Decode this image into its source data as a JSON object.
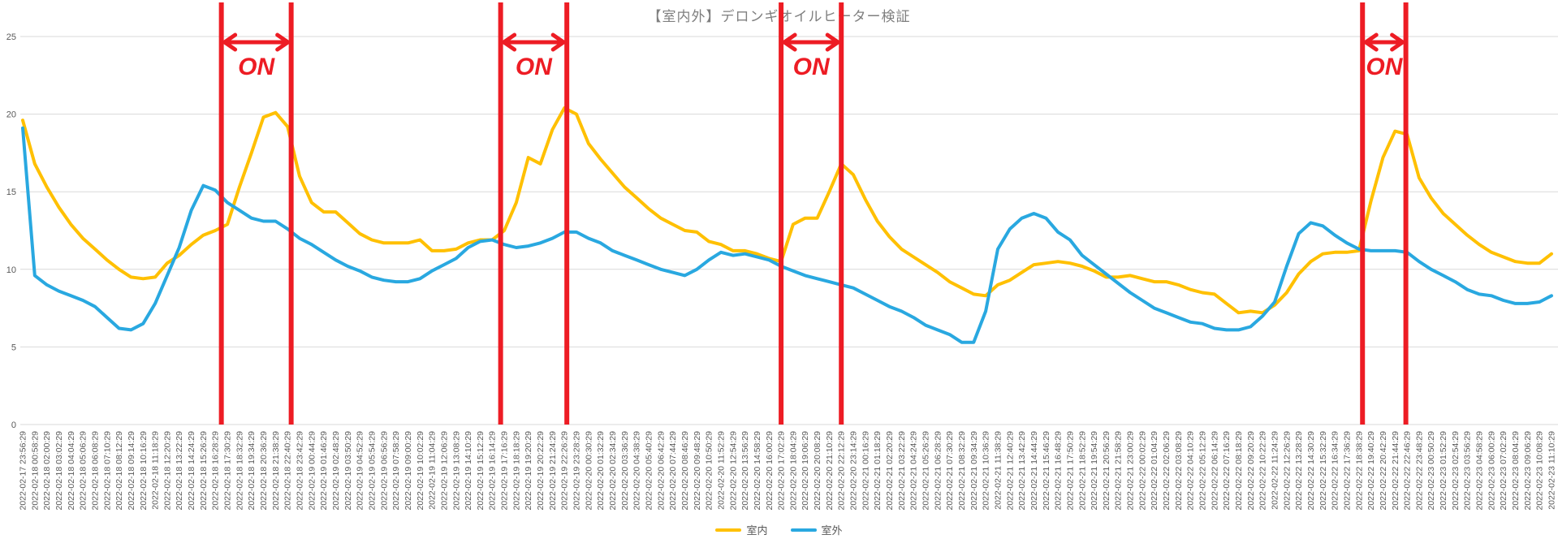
{
  "title": "【室内外】デロンギオイルヒーター検証",
  "legend": [
    {
      "label": "室内",
      "color": "#FFC000"
    },
    {
      "label": "室外",
      "color": "#29A8E0"
    }
  ],
  "colors": {
    "indoor": "#FFC000",
    "outdoor": "#29A8E0",
    "annotation_red": "#ED1C24",
    "gridline": "#D9D9D9",
    "tick_text": "#595959",
    "title_text": "#7F7F7F"
  },
  "chart_data": {
    "type": "line",
    "title": "【室内外】デロンギオイルヒーター検証",
    "xlabel": "",
    "ylabel": "",
    "ylim": [
      0,
      25
    ],
    "y_ticks": [
      0,
      5,
      10,
      15,
      20,
      25
    ],
    "grid": "horizontal",
    "legend_position": "bottom-center",
    "x_labels": [
      "2022-02-17 23:56:29",
      "2022-02-18 00:58:29",
      "2022-02-18 02:00:29",
      "2022-02-18 03:02:29",
      "2022-02-18 04:04:29",
      "2022-02-18 05:06:29",
      "2022-02-18 06:08:29",
      "2022-02-18 07:10:29",
      "2022-02-18 08:12:29",
      "2022-02-18 09:14:29",
      "2022-02-18 10:16:29",
      "2022-02-18 11:18:29",
      "2022-02-18 12:20:29",
      "2022-02-18 13:22:29",
      "2022-02-18 14:24:29",
      "2022-02-18 15:26:29",
      "2022-02-18 16:28:29",
      "2022-02-18 17:30:29",
      "2022-02-18 18:32:29",
      "2022-02-18 19:34:29",
      "2022-02-18 20:36:29",
      "2022-02-18 21:38:29",
      "2022-02-18 22:40:29",
      "2022-02-18 23:42:29",
      "2022-02-19 00:44:29",
      "2022-02-19 01:46:29",
      "2022-02-19 02:48:29",
      "2022-02-19 03:50:29",
      "2022-02-19 04:52:29",
      "2022-02-19 05:54:29",
      "2022-02-19 06:56:29",
      "2022-02-19 07:58:29",
      "2022-02-19 09:00:29",
      "2022-02-19 10:02:29",
      "2022-02-19 11:04:29",
      "2022-02-19 12:06:29",
      "2022-02-19 13:08:29",
      "2022-02-19 14:10:29",
      "2022-02-19 15:12:29",
      "2022-02-19 16:14:29",
      "2022-02-19 17:16:29",
      "2022-02-19 18:18:29",
      "2022-02-19 19:20:29",
      "2022-02-19 20:22:29",
      "2022-02-19 21:24:29",
      "2022-02-19 22:26:29",
      "2022-02-19 23:28:29",
      "2022-02-20 00:30:29",
      "2022-02-20 01:32:29",
      "2022-02-20 02:34:29",
      "2022-02-20 03:36:29",
      "2022-02-20 04:38:29",
      "2022-02-20 05:40:29",
      "2022-02-20 06:42:29",
      "2022-02-20 07:44:29",
      "2022-02-20 08:46:29",
      "2022-02-20 09:48:29",
      "2022-02-20 10:50:29",
      "2022-02-20 11:52:29",
      "2022-02-20 12:54:29",
      "2022-02-20 13:56:29",
      "2022-02-20 14:58:29",
      "2022-02-20 16:00:29",
      "2022-02-20 17:02:29",
      "2022-02-20 18:04:29",
      "2022-02-20 19:06:29",
      "2022-02-20 20:08:29",
      "2022-02-20 21:10:29",
      "2022-02-20 22:12:29",
      "2022-02-20 23:14:29",
      "2022-02-21 00:16:29",
      "2022-02-21 01:18:29",
      "2022-02-21 02:20:29",
      "2022-02-21 03:22:29",
      "2022-02-21 04:24:29",
      "2022-02-21 05:26:29",
      "2022-02-21 06:28:29",
      "2022-02-21 07:30:29",
      "2022-02-21 08:32:29",
      "2022-02-21 09:34:29",
      "2022-02-21 10:36:29",
      "2022-02-21 11:38:29",
      "2022-02-21 12:40:29",
      "2022-02-21 13:42:29",
      "2022-02-21 14:44:29",
      "2022-02-21 15:46:29",
      "2022-02-21 16:48:29",
      "2022-02-21 17:50:29",
      "2022-02-21 18:52:29",
      "2022-02-21 19:54:29",
      "2022-02-21 20:56:29",
      "2022-02-21 21:58:29",
      "2022-02-21 23:00:29",
      "2022-02-22 00:02:29",
      "2022-02-22 01:04:29",
      "2022-02-22 02:06:29",
      "2022-02-22 03:08:29",
      "2022-02-22 04:10:29",
      "2022-02-22 05:12:29",
      "2022-02-22 06:14:29",
      "2022-02-22 07:16:29",
      "2022-02-22 08:18:29",
      "2022-02-22 09:20:29",
      "2022-02-22 10:22:29",
      "2022-02-22 11:24:29",
      "2022-02-22 12:26:29",
      "2022-02-22 13:28:29",
      "2022-02-22 14:30:29",
      "2022-02-22 15:32:29",
      "2022-02-22 16:34:29",
      "2022-02-22 17:36:29",
      "2022-02-22 18:38:29",
      "2022-02-22 19:40:29",
      "2022-02-22 20:42:29",
      "2022-02-22 21:44:29",
      "2022-02-22 22:46:29",
      "2022-02-22 23:48:29",
      "2022-02-23 00:50:29",
      "2022-02-23 01:52:29",
      "2022-02-23 02:54:29",
      "2022-02-23 03:56:29",
      "2022-02-23 04:58:29",
      "2022-02-23 06:00:29",
      "2022-02-23 07:02:29",
      "2022-02-23 08:04:29",
      "2022-02-23 09:06:29",
      "2022-02-23 10:08:29",
      "2022-02-23 11:10:29"
    ],
    "series": [
      {
        "name": "室内",
        "color": "#FFC000",
        "values": [
          19.6,
          16.8,
          15.3,
          14.0,
          12.9,
          12.0,
          11.3,
          10.6,
          10.0,
          9.5,
          9.4,
          9.5,
          10.4,
          10.9,
          11.6,
          12.2,
          12.5,
          12.9,
          15.3,
          17.5,
          19.8,
          20.1,
          19.2,
          16.0,
          14.3,
          13.7,
          13.7,
          13.0,
          12.3,
          11.9,
          11.7,
          11.7,
          11.7,
          11.9,
          11.2,
          11.2,
          11.3,
          11.7,
          11.9,
          11.9,
          12.5,
          14.3,
          17.2,
          16.8,
          19.0,
          20.4,
          20.0,
          18.1,
          17.1,
          16.2,
          15.3,
          14.6,
          13.9,
          13.3,
          12.9,
          12.5,
          12.4,
          11.8,
          11.6,
          11.2,
          11.2,
          11.0,
          10.7,
          10.5,
          12.9,
          13.3,
          13.3,
          15.0,
          16.8,
          16.1,
          14.5,
          13.1,
          12.1,
          11.3,
          10.8,
          10.3,
          9.8,
          9.2,
          8.8,
          8.4,
          8.3,
          9.0,
          9.3,
          9.8,
          10.3,
          10.4,
          10.5,
          10.4,
          10.2,
          9.9,
          9.5,
          9.5,
          9.6,
          9.4,
          9.2,
          9.2,
          9.0,
          8.7,
          8.5,
          8.4,
          7.8,
          7.2,
          7.3,
          7.2,
          7.7,
          8.5,
          9.7,
          10.5,
          11.0,
          11.1,
          11.1,
          11.2,
          14.4,
          17.2,
          18.9,
          18.7,
          15.9,
          14.6,
          13.6,
          12.9,
          12.2,
          11.6,
          11.1,
          10.8,
          10.5,
          10.4,
          10.4,
          11.0
        ]
      },
      {
        "name": "室外",
        "color": "#29A8E0",
        "values": [
          19.1,
          9.6,
          9.0,
          8.6,
          8.3,
          8.0,
          7.6,
          6.9,
          6.2,
          6.1,
          6.5,
          7.8,
          9.6,
          11.4,
          13.8,
          15.4,
          15.1,
          14.3,
          13.8,
          13.3,
          13.1,
          13.1,
          12.6,
          12.0,
          11.6,
          11.1,
          10.6,
          10.2,
          9.9,
          9.5,
          9.3,
          9.2,
          9.2,
          9.4,
          9.9,
          10.3,
          10.7,
          11.4,
          11.8,
          11.9,
          11.6,
          11.4,
          11.5,
          11.7,
          12.0,
          12.4,
          12.4,
          12.0,
          11.7,
          11.2,
          10.9,
          10.6,
          10.3,
          10.0,
          9.8,
          9.6,
          10.0,
          10.6,
          11.1,
          10.9,
          11.0,
          10.8,
          10.6,
          10.2,
          9.9,
          9.6,
          9.4,
          9.2,
          9.0,
          8.8,
          8.4,
          8.0,
          7.6,
          7.3,
          6.9,
          6.4,
          6.1,
          5.8,
          5.3,
          5.3,
          7.3,
          11.3,
          12.6,
          13.3,
          13.6,
          13.3,
          12.4,
          11.9,
          10.9,
          10.3,
          9.7,
          9.1,
          8.5,
          8.0,
          7.5,
          7.2,
          6.9,
          6.6,
          6.5,
          6.2,
          6.1,
          6.1,
          6.3,
          7.0,
          7.9,
          10.2,
          12.3,
          13.0,
          12.8,
          12.2,
          11.7,
          11.3,
          11.2,
          11.2,
          11.2,
          11.1,
          10.5,
          10.0,
          9.6,
          9.2,
          8.7,
          8.4,
          8.3,
          8.0,
          7.8,
          7.8,
          7.9,
          8.3
        ]
      }
    ],
    "on_periods": [
      {
        "label": "ON",
        "start_index": 16.5,
        "end_index": 22.3,
        "start_time": "2022-02-18 17:30:29",
        "end_time": "2022-02-18 22:40:29"
      },
      {
        "label": "ON",
        "start_index": 39.7,
        "end_index": 45.2,
        "start_time": "2022-02-19 17:16:29",
        "end_time": "2022-02-19 22:26:29"
      },
      {
        "label": "ON",
        "start_index": 63.0,
        "end_index": 68.0,
        "start_time": "2022-02-20 17:02:29",
        "end_time": "2022-02-20 22:12:29"
      },
      {
        "label": "ON",
        "start_index": 111.3,
        "end_index": 114.9,
        "start_time": "2022-02-22 19:40:29",
        "end_time": "2022-02-22 22:46:29"
      }
    ]
  }
}
